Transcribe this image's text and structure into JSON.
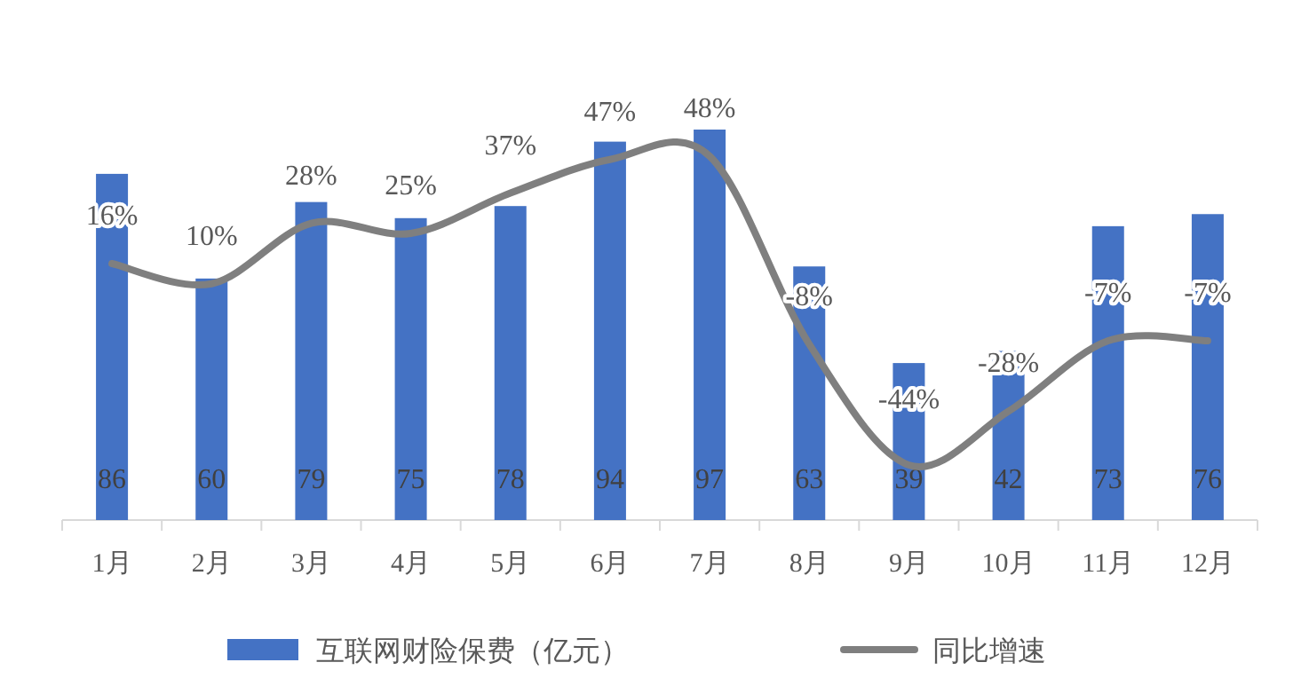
{
  "chart_data": {
    "type": "bar",
    "categories": [
      "1月",
      "2月",
      "3月",
      "4月",
      "5月",
      "6月",
      "7月",
      "8月",
      "9月",
      "10月",
      "11月",
      "12月"
    ],
    "series": [
      {
        "name": "互联网财险保费（亿元）",
        "color": "#4472c4",
        "values": [
          86,
          60,
          79,
          75,
          78,
          94,
          97,
          63,
          39,
          42,
          73,
          76
        ]
      },
      {
        "name": "同比增速",
        "type": "line",
        "axis": "y2",
        "color": "#7f7f7f",
        "values": [
          16,
          10,
          28,
          25,
          37,
          47,
          48,
          -8,
          -44,
          -28,
          -7,
          -7
        ],
        "value_labels": [
          "16%",
          "10%",
          "28%",
          "25%",
          "37%",
          "47%",
          "48%",
          "-8%",
          "-44%",
          "-28%",
          "-7%",
          "-7%"
        ]
      }
    ],
    "tick_labels": "x",
    "data_labels": true,
    "legend": "bottom",
    "marker": "none",
    "line_style": "solid"
  }
}
